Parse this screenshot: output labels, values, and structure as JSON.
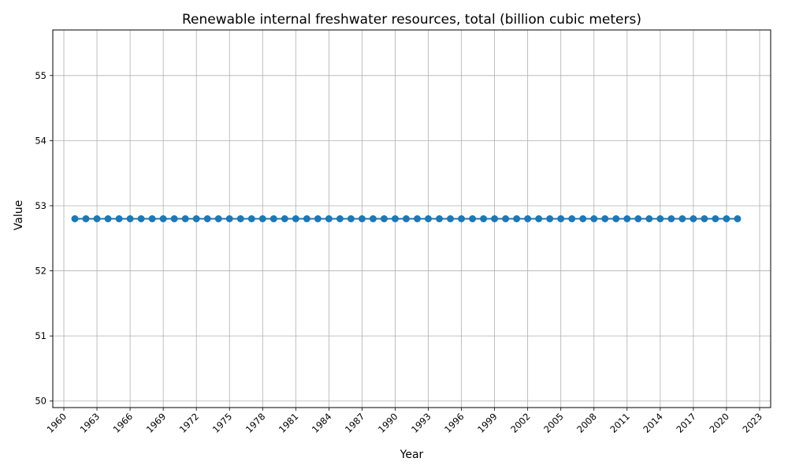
{
  "chart_data": {
    "type": "line",
    "title": "Renewable internal freshwater resources, total (billion cubic meters)",
    "xlabel": "Year",
    "ylabel": "Value",
    "xlim": [
      1959,
      2024
    ],
    "ylim": [
      49.9,
      55.7
    ],
    "x_ticks": [
      1960,
      1963,
      1966,
      1969,
      1972,
      1975,
      1978,
      1981,
      1984,
      1987,
      1990,
      1993,
      1996,
      1999,
      2002,
      2005,
      2008,
      2011,
      2014,
      2017,
      2020,
      2023
    ],
    "y_ticks": [
      50,
      51,
      52,
      53,
      54,
      55
    ],
    "grid": true,
    "line_color": "#1f77b4",
    "marker": "circle",
    "series": [
      {
        "x": [
          1961,
          1962,
          1963,
          1964,
          1965,
          1966,
          1967,
          1968,
          1969,
          1970,
          1971,
          1972,
          1973,
          1974,
          1975,
          1976,
          1977,
          1978,
          1979,
          1980,
          1981,
          1982,
          1983,
          1984,
          1985,
          1986,
          1987,
          1988,
          1989,
          1990,
          1991,
          1992,
          1993,
          1994,
          1995,
          1996,
          1997,
          1998,
          1999,
          2000,
          2001,
          2002,
          2003,
          2004,
          2005,
          2006,
          2007,
          2008,
          2009,
          2010,
          2011,
          2012,
          2013,
          2014,
          2015,
          2016,
          2017,
          2018,
          2019,
          2020,
          2021
        ],
        "y": [
          52.8,
          52.8,
          52.8,
          52.8,
          52.8,
          52.8,
          52.8,
          52.8,
          52.8,
          52.8,
          52.8,
          52.8,
          52.8,
          52.8,
          52.8,
          52.8,
          52.8,
          52.8,
          52.8,
          52.8,
          52.8,
          52.8,
          52.8,
          52.8,
          52.8,
          52.8,
          52.8,
          52.8,
          52.8,
          52.8,
          52.8,
          52.8,
          52.8,
          52.8,
          52.8,
          52.8,
          52.8,
          52.8,
          52.8,
          52.8,
          52.8,
          52.8,
          52.8,
          52.8,
          52.8,
          52.8,
          52.8,
          52.8,
          52.8,
          52.8,
          52.8,
          52.8,
          52.8,
          52.8,
          52.8,
          52.8,
          52.8,
          52.8,
          52.8,
          52.8,
          52.8
        ]
      }
    ]
  }
}
